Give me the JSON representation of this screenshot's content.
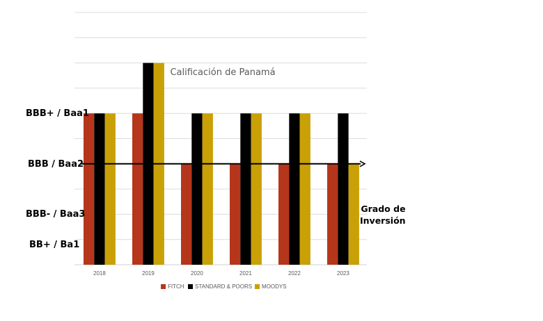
{
  "chart_data": {
    "type": "bar",
    "title": "Calificación de Panamá",
    "xlabel": "",
    "ylabel": "",
    "categories": [
      "2018",
      "2019",
      "2020",
      "2021",
      "2022",
      "2023"
    ],
    "y_scale": {
      "levels": [
        {
          "value": 1,
          "label": "BB+ / Ba1"
        },
        {
          "value": 2,
          "label": "BBB- / Baa3"
        },
        {
          "value": 3,
          "label": "BBB / Baa2"
        },
        {
          "value": 4,
          "label": "BBB+ / Baa1"
        }
      ],
      "ylim": [
        0,
        5
      ],
      "gridline_step": 0.5
    },
    "series": [
      {
        "name": "FITCH",
        "color": "#B5361B",
        "values": [
          3,
          3,
          2,
          2,
          2,
          2
        ]
      },
      {
        "name": "STANDARD & POORS",
        "color": "#000000",
        "values": [
          3,
          4,
          3,
          3,
          3,
          3
        ]
      },
      {
        "name": "MOODYS",
        "color": "#C9A006",
        "values": [
          3,
          4,
          3,
          3,
          3,
          2
        ]
      }
    ],
    "reference_line": {
      "value": 2,
      "label_line1": "Grado de",
      "label_line2": "Inversión",
      "style": "arrow"
    },
    "legend_position": "bottom",
    "grid": true
  },
  "labels": {
    "y_top": "BBB+ / Baa1",
    "y_mid": "BBB / Baa2",
    "y_ig": "BBB- / Baa3",
    "y_low": "BB+ / Ba1",
    "annot1": "Grado de",
    "annot2": "Inversión"
  }
}
